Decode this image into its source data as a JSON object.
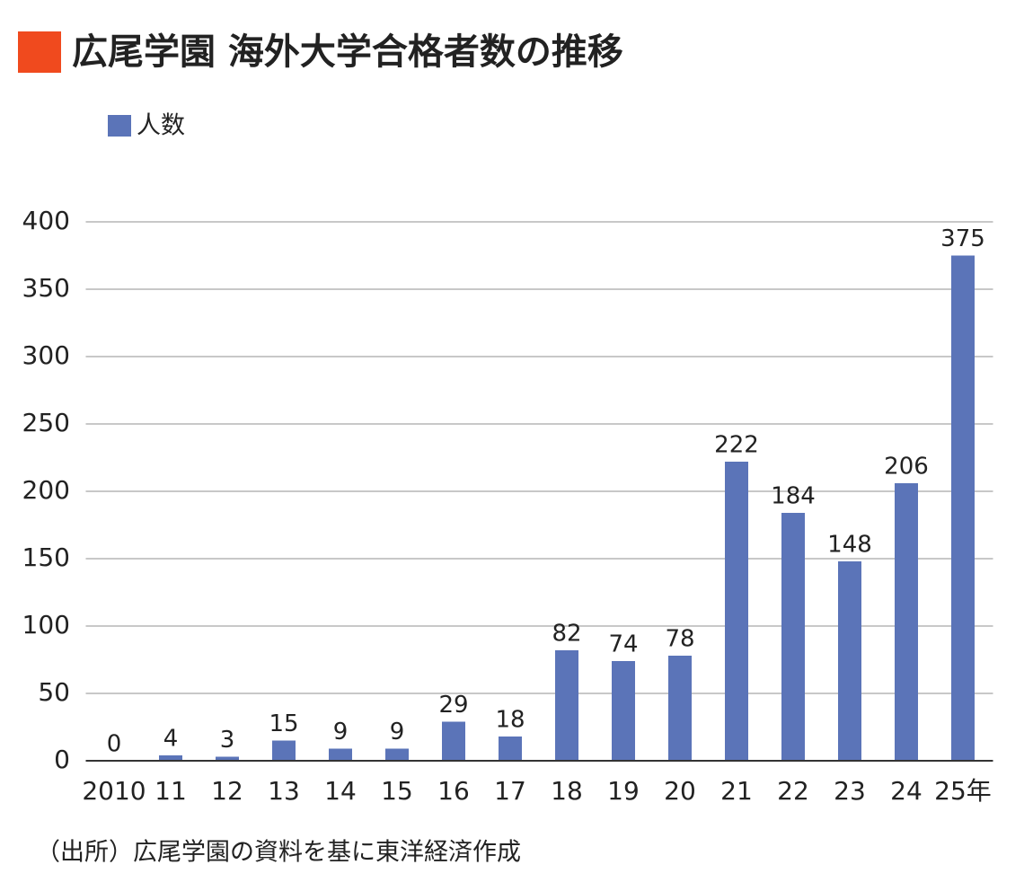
{
  "chart_data": {
    "type": "bar",
    "title": "広尾学園 海外大学合格者数の推移",
    "source": "（出所）広尾学園の資料を基に東洋経済作成",
    "categories": [
      "2010",
      "11",
      "12",
      "13",
      "14",
      "15",
      "16",
      "17",
      "18",
      "19",
      "20",
      "21",
      "22",
      "23",
      "24",
      "25年"
    ],
    "series": [
      {
        "name": "人数",
        "color": "#5b74b8",
        "values": [
          0,
          4,
          3,
          15,
          9,
          9,
          29,
          18,
          82,
          74,
          78,
          222,
          184,
          148,
          206,
          375
        ]
      }
    ],
    "ylim": [
      0,
      400
    ],
    "yticks": [
      0,
      50,
      100,
      150,
      200,
      250,
      300,
      350,
      400
    ],
    "grid": true,
    "legend": "top-left",
    "title_marker_color": "#f04a1e"
  }
}
